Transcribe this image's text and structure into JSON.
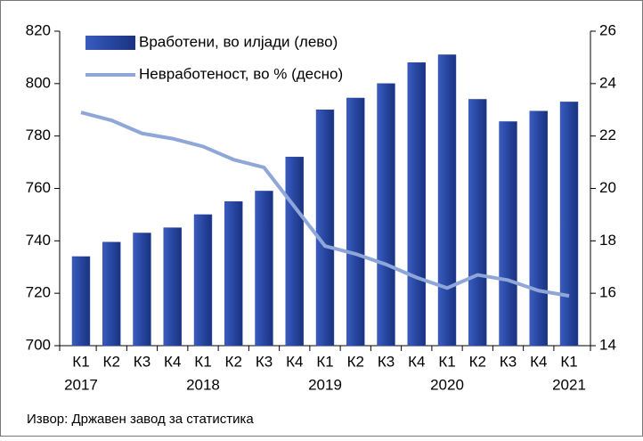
{
  "chart_data": {
    "type": "bar_line",
    "categories": [
      "К1",
      "К2",
      "К3",
      "К4",
      "К1",
      "К2",
      "К3",
      "К4",
      "К1",
      "К2",
      "К3",
      "К4",
      "К1",
      "К2",
      "К3",
      "К4",
      "К1"
    ],
    "years": [
      "2017",
      null,
      null,
      null,
      "2018",
      null,
      null,
      null,
      "2019",
      null,
      null,
      null,
      "2020",
      null,
      null,
      null,
      "2021"
    ],
    "series": [
      {
        "name": "Вработени, во илјади (лево)",
        "color": "#2746a0",
        "type": "bar",
        "axis": "y",
        "values": [
          734,
          739.5,
          743,
          745,
          750,
          755,
          759,
          772,
          790,
          794.5,
          800,
          808,
          811,
          794,
          785.5,
          789.5,
          793
        ]
      },
      {
        "name": "Невработеност, во % (десно)",
        "color": "#8ea6d8",
        "type": "line",
        "axis": "y2",
        "values": [
          22.9,
          22.6,
          22.1,
          21.9,
          21.6,
          21.1,
          20.8,
          19.3,
          17.8,
          17.5,
          17.1,
          16.6,
          16.2,
          16.7,
          16.5,
          16.1,
          15.9
        ]
      }
    ],
    "ylim": [
      700,
      820
    ],
    "yticks": [
      700,
      720,
      740,
      760,
      780,
      800,
      820
    ],
    "y2lim": [
      14,
      26
    ],
    "y2ticks": [
      14,
      16,
      18,
      20,
      22,
      24,
      26
    ],
    "source": "Извор: Државен завод за статистика"
  }
}
